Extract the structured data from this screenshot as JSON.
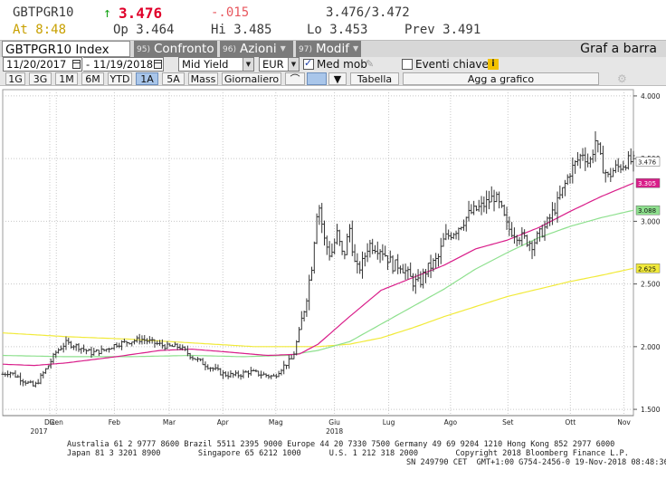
{
  "quote": {
    "ticker": "GBTPGR10",
    "arrow": "↑",
    "last": "3.476",
    "change": "-.015",
    "bid_ask": "3.476/3.472",
    "at": "At 8:48",
    "open": "Op 3.464",
    "high": "Hi 3.485",
    "low": "Lo 3.453",
    "prev": "Prev  3.491"
  },
  "title_bar": {
    "security": "GBTPGR10 Index",
    "confronto_num": "95)",
    "confronto": "Confronto",
    "azioni_num": "96)",
    "azioni": "Azioni",
    "modif_num": "97)",
    "modif": "Modif",
    "caret": "▼",
    "graf": "Graf a barra"
  },
  "controls": {
    "start_date": "11/20/2017",
    "end_date": "11/19/2018",
    "field": "Mid Yield",
    "currency": "EUR",
    "med_mob_label": "Med mob",
    "med_mob_checked": true,
    "eventi_label": "Eventi chiave",
    "eventi_checked": false,
    "info": "i"
  },
  "period_bar": {
    "periods": [
      "1G",
      "3G",
      "1M",
      "6M",
      "YTD",
      "1A",
      "5A",
      "Mass"
    ],
    "active": "1A",
    "giornaliero": "Giornaliero",
    "tabella": "Tabella",
    "agg": "Agg a grafico",
    "dd": "▼"
  },
  "chart_data": {
    "type": "ohlc-bar",
    "title": "",
    "ylim": [
      1.45,
      4.05
    ],
    "y_ticks": [
      1.5,
      2.0,
      2.5,
      3.0,
      3.5,
      4.0
    ],
    "y_tick_labels": [
      "1.500",
      "2.000",
      "2.500",
      "3.000",
      "3.500",
      "4.000"
    ],
    "x_labels": [
      "Dic",
      "Gen",
      "Feb",
      "Mar",
      "Apr",
      "Mag",
      "Giu",
      "Lug",
      "Ago",
      "Set",
      "Ott",
      "Nov"
    ],
    "x_label_fracs": [
      0.0,
      0.085,
      0.177,
      0.264,
      0.349,
      0.433,
      0.526,
      0.612,
      0.71,
      0.801,
      0.9,
      0.985
    ],
    "year_labels": [
      {
        "label": "2017",
        "pos": 0.0
      },
      {
        "label": "2018",
        "pos": 0.526
      }
    ],
    "price_anchors": [
      [
        0.0,
        1.78
      ],
      [
        0.01,
        1.8
      ],
      [
        0.03,
        1.74
      ],
      [
        0.05,
        1.68
      ],
      [
        0.07,
        1.83
      ],
      [
        0.085,
        1.96
      ],
      [
        0.1,
        2.03
      ],
      [
        0.12,
        2.0
      ],
      [
        0.14,
        1.95
      ],
      [
        0.16,
        1.97
      ],
      [
        0.18,
        2.02
      ],
      [
        0.2,
        2.04
      ],
      [
        0.22,
        2.06
      ],
      [
        0.24,
        2.03
      ],
      [
        0.26,
        2.0
      ],
      [
        0.28,
        2.0
      ],
      [
        0.3,
        1.92
      ],
      [
        0.32,
        1.86
      ],
      [
        0.35,
        1.78
      ],
      [
        0.37,
        1.77
      ],
      [
        0.39,
        1.8
      ],
      [
        0.41,
        1.78
      ],
      [
        0.43,
        1.76
      ],
      [
        0.44,
        1.82
      ],
      [
        0.46,
        1.91
      ],
      [
        0.47,
        2.12
      ],
      [
        0.48,
        2.35
      ],
      [
        0.49,
        2.65
      ],
      [
        0.5,
        3.18
      ],
      [
        0.51,
        2.85
      ],
      [
        0.52,
        2.72
      ],
      [
        0.53,
        2.9
      ],
      [
        0.54,
        2.7
      ],
      [
        0.55,
        2.95
      ],
      [
        0.56,
        2.6
      ],
      [
        0.57,
        2.66
      ],
      [
        0.58,
        2.82
      ],
      [
        0.6,
        2.78
      ],
      [
        0.62,
        2.64
      ],
      [
        0.63,
        2.66
      ],
      [
        0.65,
        2.52
      ],
      [
        0.66,
        2.5
      ],
      [
        0.67,
        2.6
      ],
      [
        0.69,
        2.7
      ],
      [
        0.7,
        2.86
      ],
      [
        0.72,
        2.94
      ],
      [
        0.74,
        3.06
      ],
      [
        0.76,
        3.12
      ],
      [
        0.78,
        3.2
      ],
      [
        0.79,
        3.1
      ],
      [
        0.8,
        2.95
      ],
      [
        0.82,
        2.88
      ],
      [
        0.84,
        2.82
      ],
      [
        0.86,
        2.95
      ],
      [
        0.88,
        3.15
      ],
      [
        0.9,
        3.4
      ],
      [
        0.92,
        3.55
      ],
      [
        0.93,
        3.45
      ],
      [
        0.94,
        3.65
      ],
      [
        0.95,
        3.45
      ],
      [
        0.96,
        3.35
      ],
      [
        0.97,
        3.42
      ],
      [
        0.98,
        3.44
      ],
      [
        0.99,
        3.48
      ],
      [
        1.0,
        3.476
      ]
    ],
    "ma_magenta": [
      [
        0.0,
        1.86
      ],
      [
        0.05,
        1.85
      ],
      [
        0.1,
        1.87
      ],
      [
        0.18,
        1.92
      ],
      [
        0.25,
        1.97
      ],
      [
        0.3,
        1.98
      ],
      [
        0.35,
        1.96
      ],
      [
        0.42,
        1.93
      ],
      [
        0.47,
        1.94
      ],
      [
        0.5,
        2.02
      ],
      [
        0.55,
        2.24
      ],
      [
        0.6,
        2.45
      ],
      [
        0.65,
        2.55
      ],
      [
        0.7,
        2.65
      ],
      [
        0.75,
        2.78
      ],
      [
        0.8,
        2.85
      ],
      [
        0.85,
        2.95
      ],
      [
        0.9,
        3.08
      ],
      [
        0.95,
        3.2
      ],
      [
        1.0,
        3.305
      ]
    ],
    "ma_green": [
      [
        0.0,
        1.93
      ],
      [
        0.1,
        1.92
      ],
      [
        0.2,
        1.92
      ],
      [
        0.3,
        1.93
      ],
      [
        0.38,
        1.92
      ],
      [
        0.45,
        1.93
      ],
      [
        0.5,
        1.97
      ],
      [
        0.55,
        2.04
      ],
      [
        0.6,
        2.18
      ],
      [
        0.65,
        2.32
      ],
      [
        0.7,
        2.46
      ],
      [
        0.75,
        2.62
      ],
      [
        0.8,
        2.75
      ],
      [
        0.85,
        2.87
      ],
      [
        0.9,
        2.96
      ],
      [
        0.95,
        3.03
      ],
      [
        1.0,
        3.088
      ]
    ],
    "ma_yellow": [
      [
        0.0,
        2.11
      ],
      [
        0.1,
        2.08
      ],
      [
        0.2,
        2.06
      ],
      [
        0.3,
        2.03
      ],
      [
        0.4,
        2.0
      ],
      [
        0.5,
        2.0
      ],
      [
        0.55,
        2.02
      ],
      [
        0.6,
        2.07
      ],
      [
        0.65,
        2.15
      ],
      [
        0.7,
        2.24
      ],
      [
        0.75,
        2.32
      ],
      [
        0.8,
        2.4
      ],
      [
        0.85,
        2.46
      ],
      [
        0.9,
        2.52
      ],
      [
        0.95,
        2.57
      ],
      [
        1.0,
        2.625
      ]
    ],
    "last_label": "3.476",
    "ma_labels": {
      "magenta": "3.305",
      "green": "3.088",
      "yellow": "2.625"
    }
  },
  "colors": {
    "bars": "#333333",
    "magenta": "#d91e8a",
    "green": "#8ee08e",
    "yellow": "#f1ea3a",
    "grid": "#c8c8c8",
    "last_price": "#e0002a",
    "active_period": "#a9c6ea",
    "info_icon": "#f2c200"
  },
  "footer": {
    "line1": "Australia 61 2 9777 8600 Brazil 5511 2395 9000 Europe 44 20 7330 7500 Germany 49 69 9204 1210 Hong Kong 852 2977 6000",
    "line2": "Japan 81 3 3201 8900        Singapore 65 6212 1000      U.S. 1 212 318 2000        Copyright 2018 Bloomberg Finance L.P.",
    "line3": "SN 249790 CET  GMT+1:00 G754-2456-0 19-Nov-2018 08:48:36"
  }
}
